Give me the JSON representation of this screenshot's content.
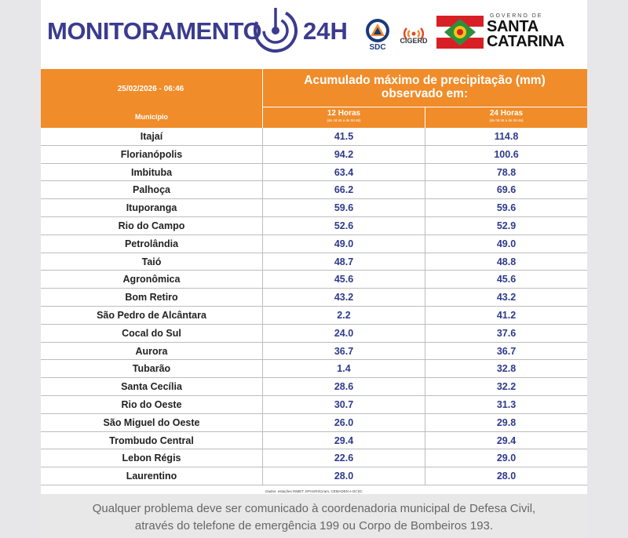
{
  "header": {
    "title": "MONITORAMENTO",
    "title_suffix": "24H",
    "sdc_label": "SDC",
    "cigerd_label": "CIGERD",
    "gov_small": "GOVERNO DE",
    "gov_line1": "SANTA",
    "gov_line2": "CATARINA"
  },
  "table": {
    "date": "25/02/2026 - 06:46",
    "title_line1": "Acumulado máximo de precipitação (mm)",
    "title_line2": "observado em:",
    "col_municipio": "Município",
    "col_12h": "12 Horas",
    "col_12h_sub": "(de 18:46 a de 06:46)",
    "col_24h": "24 Horas",
    "col_24h_sub": "(de 06:46 a de 06:46)",
    "rows": [
      {
        "municipio": "Itajaí",
        "h12": "41.5",
        "h24": "114.8"
      },
      {
        "municipio": "Florianópolis",
        "h12": "94.2",
        "h24": "100.6"
      },
      {
        "municipio": "Imbituba",
        "h12": "63.4",
        "h24": "78.8"
      },
      {
        "municipio": "Palhoça",
        "h12": "66.2",
        "h24": "69.6"
      },
      {
        "municipio": "Ituporanga",
        "h12": "59.6",
        "h24": "59.6"
      },
      {
        "municipio": "Rio do Campo",
        "h12": "52.6",
        "h24": "52.9"
      },
      {
        "municipio": "Petrolândia",
        "h12": "49.0",
        "h24": "49.0"
      },
      {
        "municipio": "Taió",
        "h12": "48.7",
        "h24": "48.8"
      },
      {
        "municipio": "Agronômica",
        "h12": "45.6",
        "h24": "45.6"
      },
      {
        "municipio": "Bom Retiro",
        "h12": "43.2",
        "h24": "43.2"
      },
      {
        "municipio": "São Pedro de Alcântara",
        "h12": "2.2",
        "h24": "41.2"
      },
      {
        "municipio": "Cocal do Sul",
        "h12": "24.0",
        "h24": "37.6"
      },
      {
        "municipio": "Aurora",
        "h12": "36.7",
        "h24": "36.7"
      },
      {
        "municipio": "Tubarão",
        "h12": "1.4",
        "h24": "32.8"
      },
      {
        "municipio": "Santa Cecília",
        "h12": "28.6",
        "h24": "32.2"
      },
      {
        "municipio": "Rio do Oeste",
        "h12": "30.7",
        "h24": "31.3"
      },
      {
        "municipio": "São Miguel do Oeste",
        "h12": "26.0",
        "h24": "29.8"
      },
      {
        "municipio": "Trombudo Central",
        "h12": "29.4",
        "h24": "29.4"
      },
      {
        "municipio": "Lebon Régis",
        "h12": "22.6",
        "h24": "29.0"
      },
      {
        "municipio": "Laurentino",
        "h12": "28.0",
        "h24": "28.0"
      }
    ],
    "source": "Dados: estações INMET, EPAGRI/Ciram, CEMADEN e DCSC"
  },
  "footer": {
    "line1": "Qualquer problema deve ser comunicado à coordenadoria municipal de Defesa Civil,",
    "line2": "através do telefone de emergência 199 ou Corpo de Bombeiros 193."
  },
  "colors": {
    "orange": "#f08c2a",
    "title_blue": "#3b3b8f",
    "value_blue": "#2e3a8c"
  }
}
